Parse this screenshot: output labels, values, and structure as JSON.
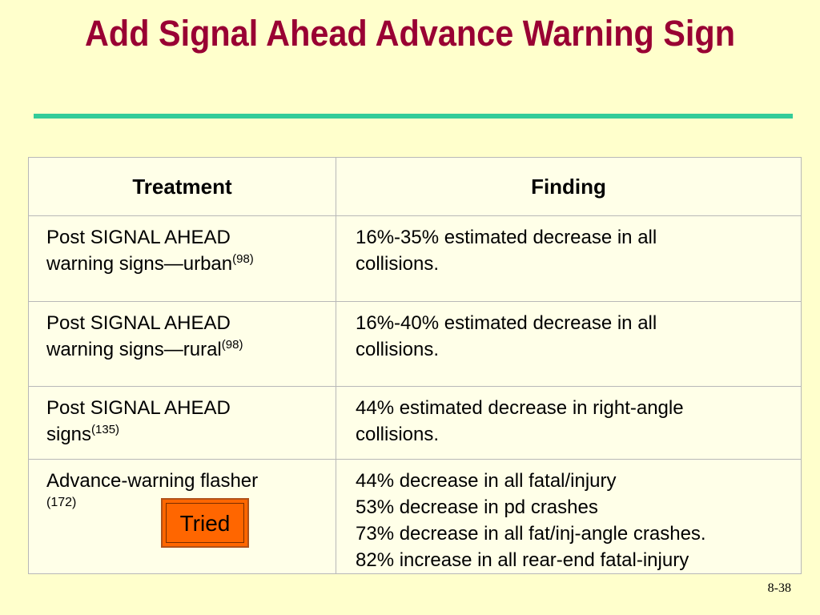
{
  "slide": {
    "title": "Add Signal Ahead Advance Warning Sign",
    "number": "8-38"
  },
  "colors": {
    "background": "#ffffcc",
    "title": "#990033",
    "rule": "#33cc99",
    "badge": "#ff6600"
  },
  "table": {
    "headers": [
      "Treatment",
      "Finding"
    ],
    "rows": [
      {
        "treatment_lines": [
          "Post SIGNAL AHEAD",
          "warning signs—urban"
        ],
        "treatment_ref": "(98)",
        "finding_lines": [
          "16%-35% estimated decrease in all",
          "collisions."
        ]
      },
      {
        "treatment_lines": [
          "Post SIGNAL AHEAD",
          "warning signs—rural"
        ],
        "treatment_ref": "(98)",
        "finding_lines": [
          "16%-40% estimated decrease in all",
          "collisions."
        ]
      },
      {
        "treatment_lines": [
          "Post SIGNAL AHEAD",
          "signs"
        ],
        "treatment_ref": "(135)",
        "finding_lines": [
          "44% estimated decrease in right-angle",
          "collisions."
        ]
      },
      {
        "treatment_lines": [
          "Advance-warning flasher"
        ],
        "treatment_ref": "(172)",
        "badge": "Tried",
        "finding_lines": [
          "44% decrease in all fatal/injury",
          "53% decrease in pd crashes",
          "73% decrease in all fat/inj-angle crashes.",
          "82% increase in all rear-end fatal-injury"
        ]
      }
    ]
  }
}
